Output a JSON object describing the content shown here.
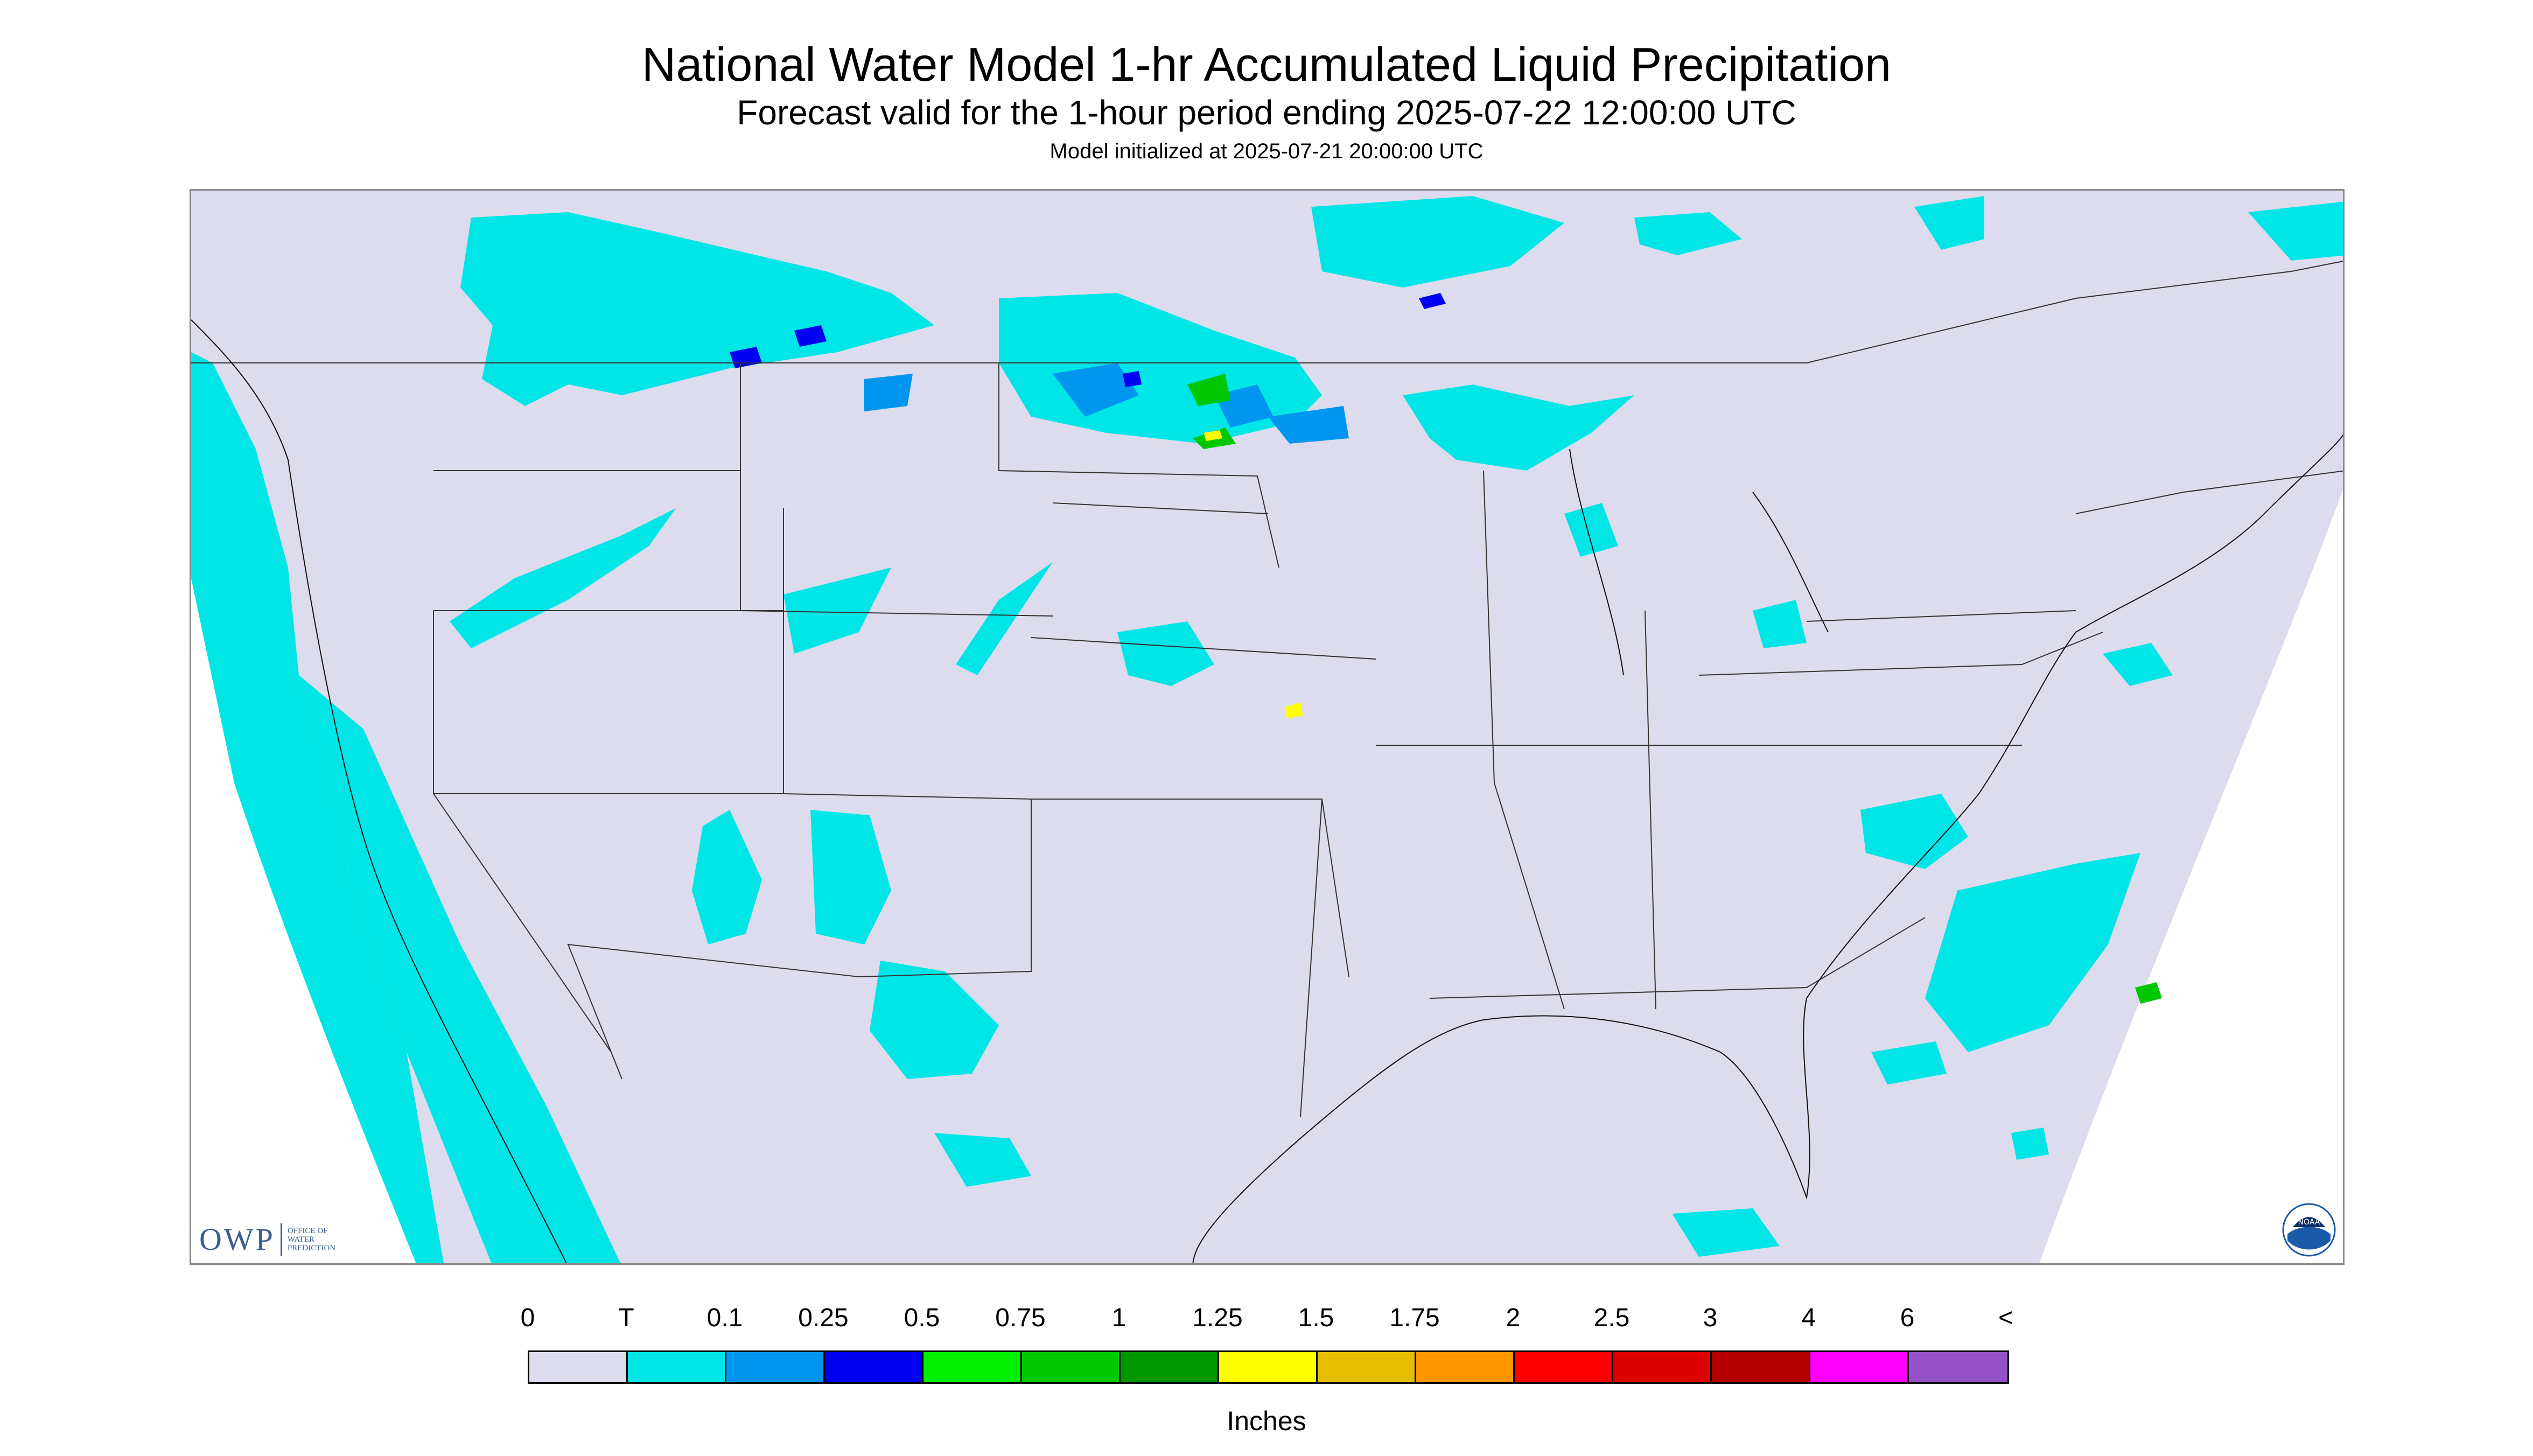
{
  "header": {
    "title": "National Water Model 1-hr Accumulated Liquid Precipitation",
    "subtitle": "Forecast valid for the 1-hour period ending 2025-07-22 12:00:00 UTC",
    "init": "Model initialized at 2025-07-21 20:00:00 UTC"
  },
  "logos": {
    "owp_main": "OWP",
    "owp_sub": [
      "OFFICE OF",
      "WATER",
      "PREDICTION"
    ],
    "noaa": "NOAA"
  },
  "legend": {
    "labels": [
      "0",
      "T",
      "0.1",
      "0.25",
      "0.5",
      "0.75",
      "1",
      "1.25",
      "1.5",
      "1.75",
      "2",
      "2.5",
      "3",
      "4",
      "6",
      "<"
    ],
    "colors": [
      "#dcdcee",
      "#00e6e6",
      "#0096f0",
      "#0000f0",
      "#00f000",
      "#00c800",
      "#009600",
      "#ffff00",
      "#e6be00",
      "#ff9600",
      "#ff0000",
      "#dc0000",
      "#b40000",
      "#ff00ff",
      "#9650c8"
    ],
    "units": "Inches"
  },
  "map": {
    "background_color": "#dcdcee",
    "trace_color": "#00e6e6",
    "light_color": "#0096f0",
    "moderate_color": "#0000f0",
    "heavy_color": "#00c800",
    "extreme_color": "#ffff00",
    "boundary_color": "#333333"
  }
}
